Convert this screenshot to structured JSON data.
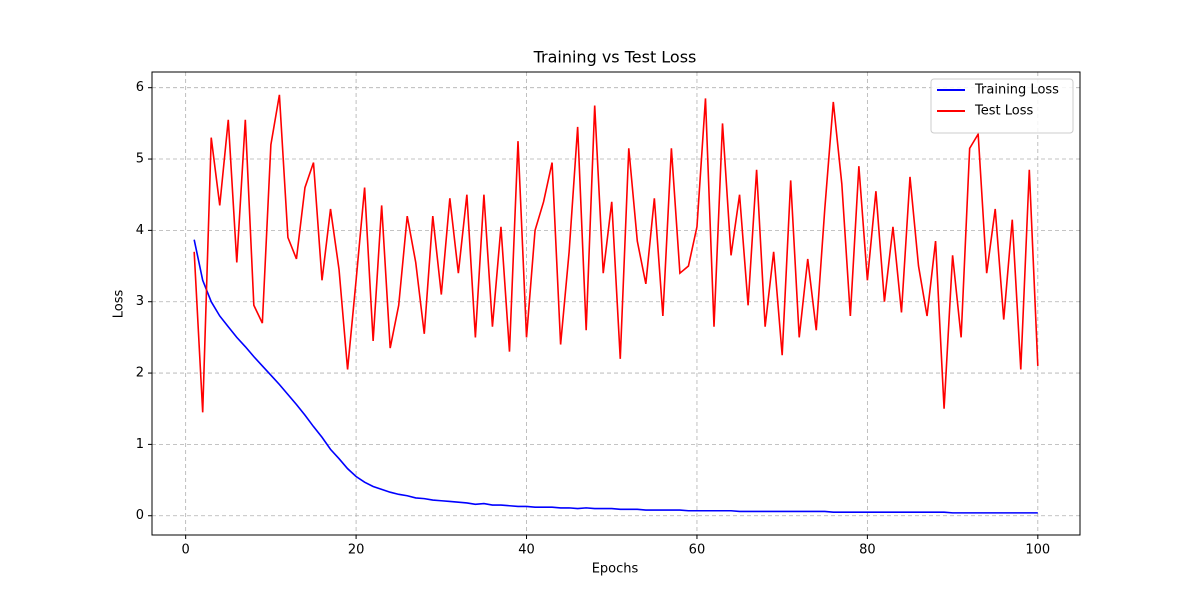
{
  "chart_data": {
    "type": "line",
    "title": "Training vs Test Loss",
    "x_label": "Epochs",
    "y_label": "Loss",
    "x": [
      1,
      2,
      3,
      4,
      5,
      6,
      7,
      8,
      9,
      10,
      11,
      12,
      13,
      14,
      15,
      16,
      17,
      18,
      19,
      20,
      21,
      22,
      23,
      24,
      25,
      26,
      27,
      28,
      29,
      30,
      31,
      32,
      33,
      34,
      35,
      36,
      37,
      38,
      39,
      40,
      41,
      42,
      43,
      44,
      45,
      46,
      47,
      48,
      49,
      50,
      51,
      52,
      53,
      54,
      55,
      56,
      57,
      58,
      59,
      60,
      61,
      62,
      63,
      64,
      65,
      66,
      67,
      68,
      69,
      70,
      71,
      72,
      73,
      74,
      75,
      76,
      77,
      78,
      79,
      80,
      81,
      82,
      83,
      84,
      85,
      86,
      87,
      88,
      89,
      90,
      91,
      92,
      93,
      94,
      95,
      96,
      97,
      98,
      99,
      100
    ],
    "series": [
      {
        "name": "Training Loss",
        "color": "#0000ff",
        "values": [
          3.87,
          3.3,
          3.0,
          2.8,
          2.65,
          2.5,
          2.37,
          2.23,
          2.1,
          1.97,
          1.84,
          1.7,
          1.56,
          1.41,
          1.25,
          1.1,
          0.93,
          0.8,
          0.66,
          0.55,
          0.47,
          0.41,
          0.37,
          0.33,
          0.3,
          0.28,
          0.25,
          0.24,
          0.22,
          0.21,
          0.2,
          0.19,
          0.18,
          0.16,
          0.17,
          0.15,
          0.15,
          0.14,
          0.13,
          0.13,
          0.12,
          0.12,
          0.12,
          0.11,
          0.11,
          0.1,
          0.11,
          0.1,
          0.1,
          0.1,
          0.09,
          0.09,
          0.09,
          0.08,
          0.08,
          0.08,
          0.08,
          0.08,
          0.07,
          0.07,
          0.07,
          0.07,
          0.07,
          0.07,
          0.06,
          0.06,
          0.06,
          0.06,
          0.06,
          0.06,
          0.06,
          0.06,
          0.06,
          0.06,
          0.06,
          0.05,
          0.05,
          0.05,
          0.05,
          0.05,
          0.05,
          0.05,
          0.05,
          0.05,
          0.05,
          0.05,
          0.05,
          0.05,
          0.05,
          0.04,
          0.04,
          0.04,
          0.04,
          0.04,
          0.04,
          0.04,
          0.04,
          0.04,
          0.04,
          0.04
        ]
      },
      {
        "name": "Test Loss",
        "color": "#ff0000",
        "values": [
          3.7,
          1.45,
          5.3,
          4.35,
          5.55,
          3.55,
          5.55,
          2.95,
          2.7,
          5.2,
          5.9,
          3.9,
          3.6,
          4.6,
          4.95,
          3.3,
          4.3,
          3.45,
          2.05,
          3.3,
          4.6,
          2.45,
          4.35,
          2.35,
          2.95,
          4.2,
          3.55,
          2.55,
          4.2,
          3.1,
          4.45,
          3.4,
          4.5,
          2.5,
          4.5,
          2.65,
          4.05,
          2.3,
          5.25,
          2.5,
          4.0,
          4.4,
          4.95,
          2.4,
          3.7,
          5.45,
          2.6,
          5.75,
          3.4,
          4.4,
          2.2,
          5.15,
          3.85,
          3.25,
          4.45,
          2.8,
          5.15,
          3.4,
          3.5,
          4.05,
          5.85,
          2.65,
          5.5,
          3.65,
          4.5,
          2.95,
          4.85,
          2.65,
          3.7,
          2.25,
          4.7,
          2.5,
          3.6,
          2.6,
          4.3,
          5.8,
          4.65,
          2.8,
          4.9,
          3.3,
          4.55,
          3.0,
          4.05,
          2.85,
          4.75,
          3.5,
          2.8,
          3.85,
          1.5,
          3.65,
          2.5,
          5.15,
          5.35,
          3.4,
          4.3,
          2.75,
          4.15,
          2.05,
          4.85,
          2.1
        ]
      }
    ],
    "xlim": [
      -3.95,
      104.95
    ],
    "ylim": [
      -0.27,
      6.22
    ],
    "xticks": [
      0,
      20,
      40,
      60,
      80,
      100
    ],
    "yticks": [
      0,
      1,
      2,
      3,
      4,
      5,
      6
    ],
    "grid": true,
    "legend": "upper right"
  }
}
